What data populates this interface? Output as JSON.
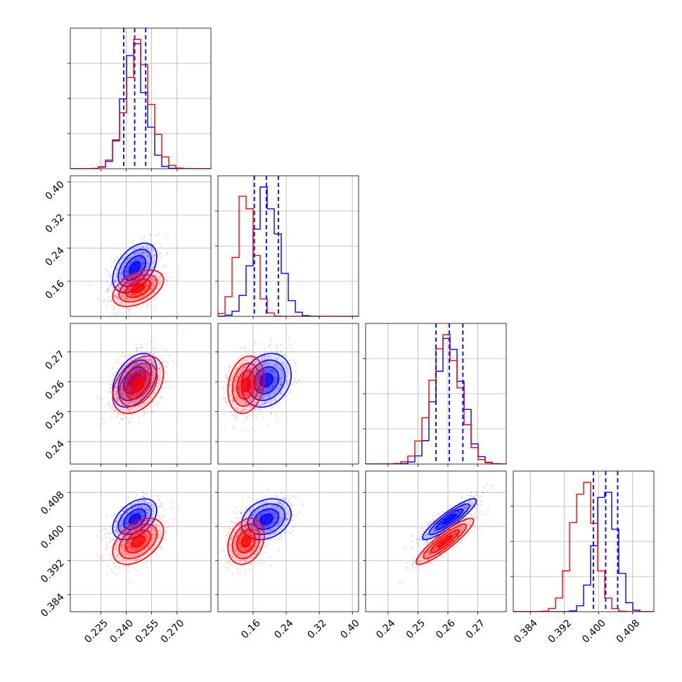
{
  "chart_data": {
    "type": "corner",
    "grid": true,
    "colors": {
      "series_a": "#0000ff",
      "series_b": "#ff0000",
      "quantile_lines": "#0000ff"
    },
    "parameters": [
      {
        "xlim": [
          0.207,
          0.29
        ],
        "ticks": [
          0.225,
          0.24,
          0.255,
          0.27
        ],
        "tick_labels": [
          "0.225",
          "0.240",
          "0.255",
          "0.270"
        ]
      },
      {
        "xlim": [
          0.075,
          0.415
        ],
        "ticks": [
          0.16,
          0.24,
          0.32,
          0.4
        ],
        "tick_labels": [
          "0.16",
          "0.24",
          "0.32",
          "0.40"
        ]
      },
      {
        "xlim": [
          0.2325,
          0.2795
        ],
        "ticks": [
          0.24,
          0.25,
          0.26,
          0.27
        ],
        "tick_labels": [
          "0.24",
          "0.25",
          "0.26",
          "0.27"
        ]
      },
      {
        "xlim": [
          0.38,
          0.413
        ],
        "ticks": [
          0.384,
          0.392,
          0.4,
          0.408
        ],
        "tick_labels": [
          "0.384",
          "0.392",
          "0.400",
          "0.408"
        ]
      }
    ],
    "series": [
      {
        "color": "#0000ff",
        "mean": [
          0.245,
          0.192,
          0.2605,
          0.4017
        ],
        "std": [
          0.0065,
          0.03,
          0.0045,
          0.0024
        ],
        "quantiles_16_50_84": [
          [
            0.2385,
            0.245,
            0.2515
          ],
          [
            0.163,
            0.192,
            0.221
          ],
          [
            0.256,
            0.2605,
            0.265
          ],
          [
            0.3988,
            0.4017,
            0.4045
          ]
        ],
        "correlations": {
          "0-1": 0.45,
          "0-2": 0.4,
          "0-3": 0.45,
          "1-2": 0.2,
          "1-3": 0.25,
          "2-3": 0.9
        }
      },
      {
        "color": "#ff0000",
        "mean": [
          0.247,
          0.143,
          0.259,
          0.3965
        ],
        "std": [
          0.0075,
          0.022,
          0.0048,
          0.0027
        ],
        "correlations": {
          "0-1": 0.45,
          "0-2": 0.4,
          "0-3": 0.45,
          "1-2": 0.2,
          "1-3": 0.25,
          "2-3": 0.9
        }
      }
    ],
    "contour_levels_sigma": [
      0.5,
      1.0,
      1.5,
      2.0
    ]
  }
}
